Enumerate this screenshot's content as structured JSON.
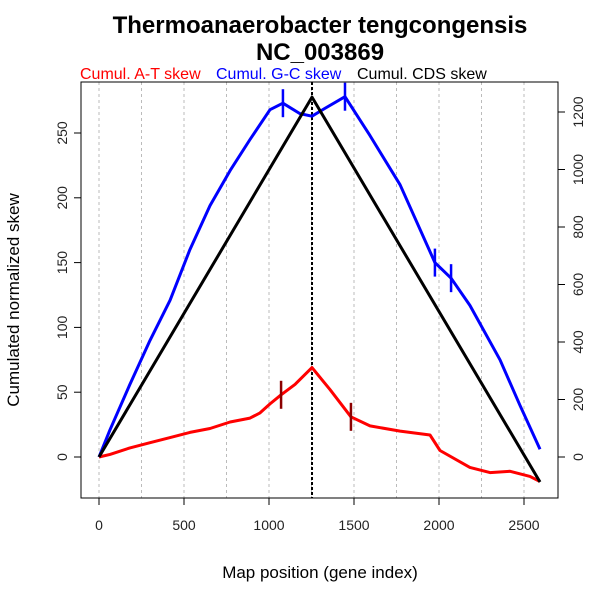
{
  "chart_data": {
    "type": "line",
    "title": "Thermoanaerobacter tengcongensis",
    "subtitle": "NC_003869",
    "xlabel": "Map position (gene index)",
    "ylabel": "Cumulated normalized skew",
    "xlim": [
      0,
      2600
    ],
    "ylim": [
      -30,
      285
    ],
    "y2lim": [
      -150,
      1230
    ],
    "x_ticks": [
      0,
      500,
      1000,
      1500,
      2000,
      2500
    ],
    "x_tick_labels": [
      "0",
      "500",
      "1000",
      "1500",
      "2000",
      "2500"
    ],
    "x_gridlines": [
      0,
      250,
      500,
      750,
      1000,
      1250,
      1500,
      1750,
      2000,
      2250,
      2500
    ],
    "y_ticks": [
      0,
      50,
      100,
      150,
      200,
      250
    ],
    "y_tick_labels": [
      "0",
      "50",
      "100",
      "150",
      "200",
      "250"
    ],
    "y2_ticks": [
      0,
      200,
      400,
      600,
      800,
      1000,
      1200
    ],
    "y2_tick_labels": [
      "0",
      "200",
      "400",
      "600",
      "800",
      "1000",
      "1200"
    ],
    "grid": "vertical dotted",
    "legend_position": "top",
    "vline_x": 1253,
    "series": [
      {
        "name": "Cumul. A-T skew",
        "color": "#ff0000",
        "axis": "left",
        "x": [
          0,
          65,
          182,
          300,
          418,
          535,
          653,
          771,
          888,
          947,
          1006,
          1071,
          1153,
          1253,
          1359,
          1482,
          1594,
          1771,
          1947,
          2006,
          2182,
          2300,
          2418,
          2535,
          2594
        ],
        "values": [
          0,
          2,
          7,
          11,
          15,
          19,
          22,
          27,
          30,
          34,
          41,
          48,
          56,
          69,
          52,
          31,
          24,
          20,
          17,
          5,
          -8,
          -12,
          -11,
          -15,
          -19
        ],
        "markers": [
          {
            "x": 1071,
            "y": 48
          },
          {
            "x": 1482,
            "y": 31
          }
        ],
        "marker_color": "#8b0000"
      },
      {
        "name": "Cumul. G-C skew",
        "color": "#0000ff",
        "axis": "left",
        "x": [
          0,
          65,
          182,
          300,
          418,
          535,
          653,
          771,
          888,
          1006,
          1082,
          1182,
          1253,
          1329,
          1447,
          1594,
          1771,
          1976,
          2071,
          2182,
          2359,
          2476,
          2594
        ],
        "values": [
          0,
          21,
          56,
          90,
          121,
          160,
          194,
          221,
          245,
          268,
          273,
          265,
          263,
          269,
          278,
          248,
          210,
          150,
          138,
          117,
          75,
          40,
          6
        ],
        "markers": [
          {
            "x": 1082,
            "y": 273
          },
          {
            "x": 1447,
            "y": 278
          },
          {
            "x": 1976,
            "y": 150
          },
          {
            "x": 2071,
            "y": 138
          }
        ],
        "marker_color": "#0000ff"
      },
      {
        "name": "Cumul. CDS skew",
        "color": "#000000",
        "axis": "right",
        "x": [
          0,
          1253,
          2594
        ],
        "values": [
          0,
          1252,
          -87
        ]
      }
    ]
  }
}
